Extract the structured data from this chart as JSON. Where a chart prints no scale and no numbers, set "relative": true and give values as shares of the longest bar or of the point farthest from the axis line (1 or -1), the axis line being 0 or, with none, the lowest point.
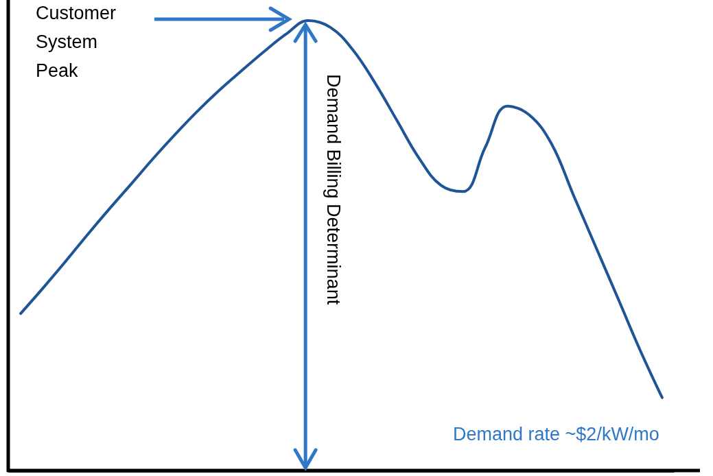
{
  "chart_data": {
    "type": "line",
    "relative": true,
    "categories": [
      null,
      null,
      null,
      null,
      null,
      null,
      null,
      null,
      null,
      null,
      null,
      null,
      null,
      null,
      null,
      null,
      null,
      null,
      null,
      null,
      null,
      null,
      null,
      null,
      null,
      null,
      null,
      null,
      null,
      null
    ],
    "series": [
      {
        "color": "#1f5596",
        "values": [
          0.349,
          0.405,
          0.463,
          0.523,
          0.581,
          0.637,
          0.694,
          0.748,
          0.799,
          0.846,
          0.889,
          0.931,
          0.97,
          1,
          0.985,
          0.936,
          0.863,
          0.779,
          0.695,
          0.634,
          0.62,
          0.718,
          0.81,
          0.79,
          0.726,
          0.611,
          0.497,
          0.383,
          0.268,
          0.162
        ]
      }
    ],
    "annotations": [
      "Customer\nSystem\nPeak",
      "Demand Billing Determinant",
      "Demand rate ~$2/kW/mo"
    ],
    "marker": "none"
  }
}
